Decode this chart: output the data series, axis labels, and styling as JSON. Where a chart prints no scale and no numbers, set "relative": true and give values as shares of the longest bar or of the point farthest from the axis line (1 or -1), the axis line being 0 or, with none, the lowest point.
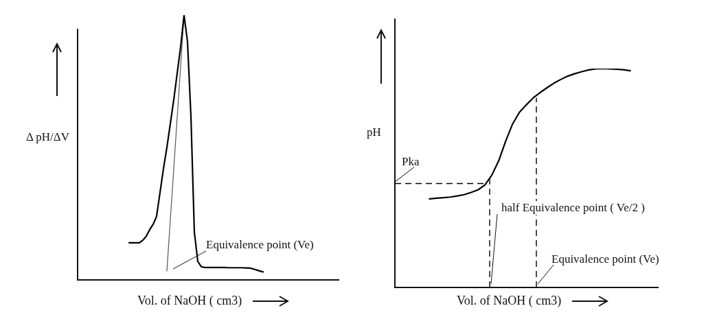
{
  "chart_data": [
    {
      "type": "line",
      "relative": true,
      "ylabel": "Δ pH/ΔV",
      "xlabel": "Vol. of NaOH ( cm3)",
      "tick_labels": false,
      "grid": false,
      "legend": false,
      "marker": "none",
      "categories": [
        null,
        null,
        null,
        null,
        null,
        null,
        null,
        null,
        null,
        null,
        null,
        null,
        null,
        null,
        null,
        null,
        null,
        null,
        null,
        null,
        null,
        null,
        null,
        null,
        null,
        null,
        null,
        null,
        null,
        null,
        null,
        null,
        null,
        null,
        null,
        null,
        null,
        null,
        null,
        null,
        null,
        null,
        null,
        null,
        null,
        null,
        null,
        null,
        null,
        null,
        null,
        null,
        null,
        null,
        null,
        null,
        null,
        null,
        null,
        null,
        null,
        null,
        null,
        null,
        null,
        null,
        null,
        null,
        null,
        null,
        null,
        null,
        null,
        null,
        null,
        null,
        null
      ],
      "series": [
        {
          "color": "#000000",
          "values": [
            null,
            null,
            null,
            null,
            null,
            null,
            null,
            null,
            null,
            null,
            null,
            null,
            null,
            null,
            null,
            0.14,
            0.14,
            0.14,
            0.14,
            0.15,
            0.165,
            0.19,
            0.21,
            0.24,
            0.33,
            0.42,
            0.5,
            0.59,
            0.68,
            0.78,
            0.88,
            1,
            0.9,
            0.62,
            0.18,
            0.07,
            0.05,
            0.047,
            0.047,
            0.047,
            0.047,
            0.047,
            0.047,
            0.047,
            0.046,
            0.046,
            0.046,
            0.046,
            0.046,
            0.045,
            0.045,
            0.042,
            0.038,
            0.034,
            0.03,
            null,
            null,
            null,
            null,
            null,
            null,
            null,
            null,
            null,
            null,
            null,
            null,
            null,
            null,
            null,
            null,
            null,
            null,
            null,
            null,
            null,
            null
          ]
        },
        {
          "color": "#555555",
          "values": [
            null,
            null,
            null,
            null,
            null,
            null,
            null,
            null,
            null,
            null,
            null,
            null,
            null,
            null,
            null,
            null,
            null,
            null,
            null,
            null,
            null,
            null,
            null,
            null,
            null,
            null,
            0.034,
            0.227,
            0.42,
            0.614,
            0.807,
            1,
            null,
            null,
            null,
            null,
            null,
            null,
            null,
            null,
            null,
            null,
            null,
            null,
            null,
            null,
            null,
            null,
            null,
            null,
            null,
            null,
            null,
            null,
            null,
            null,
            null,
            null,
            null,
            null,
            null,
            null,
            null,
            null,
            null,
            null,
            null,
            null,
            null,
            null,
            null,
            null,
            null,
            null,
            null,
            null,
            null
          ]
        }
      ],
      "annotations": [
        "Equivalence point (Ve)"
      ]
    },
    {
      "type": "line",
      "relative": true,
      "ylabel": "pH",
      "xlabel": "Vol. of NaOH ( cm3)",
      "tick_labels": false,
      "grid": false,
      "legend": false,
      "marker": "none",
      "categories": [
        null,
        null,
        null,
        null,
        null,
        null,
        null,
        null,
        null,
        null,
        null,
        null,
        null,
        null,
        null,
        null,
        null,
        null,
        null,
        null,
        null,
        null,
        null,
        null,
        null,
        null,
        null,
        null,
        null,
        null,
        null,
        null,
        null,
        null,
        null,
        null,
        null,
        null,
        null
      ],
      "series": [
        {
          "color": "#000000",
          "values": [
            null,
            null,
            null,
            null,
            null,
            0.405,
            0.408,
            0.41,
            0.413,
            0.418,
            0.424,
            0.434,
            0.446,
            0.468,
            0.513,
            0.579,
            0.668,
            0.747,
            0.801,
            0.835,
            0.867,
            0.891,
            0.913,
            0.934,
            0.951,
            0.966,
            0.977,
            0.986,
            0.994,
            0.999,
            1,
            0.999,
            0.997,
            0.995,
            0.99,
            null,
            null,
            null,
            null
          ]
        }
      ],
      "ref_lines": [
        {
          "axis": "y",
          "value": 0.475,
          "label": "Pka",
          "line_style": "dashed",
          "color": "#000000"
        }
      ],
      "annotations": [
        "half Equivalence point ( Ve/2 )",
        "Equivalence point (Ve)"
      ]
    }
  ]
}
